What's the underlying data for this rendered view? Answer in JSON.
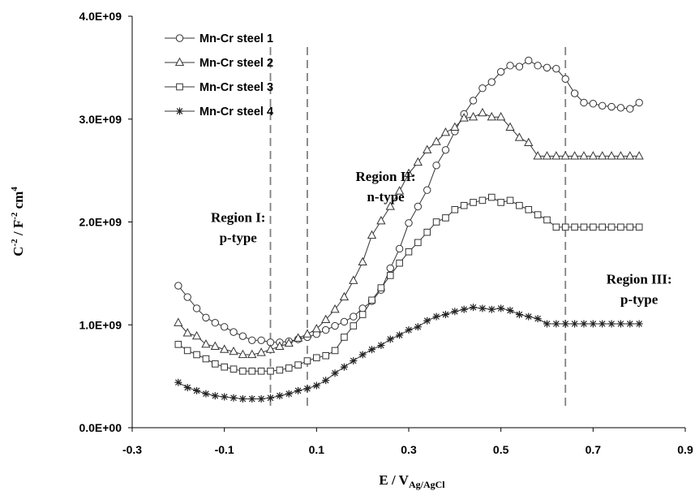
{
  "chart_data": {
    "type": "scatter",
    "xlabel": "E / V",
    "xlabel_sub": "Ag/AgCl",
    "ylabel_parts": [
      "C",
      "-2",
      " / F",
      "-2",
      " cm",
      "4"
    ],
    "xlim": [
      -0.3,
      0.9
    ],
    "ylim": [
      0,
      4000000000
    ],
    "x_ticks": [
      -0.3,
      -0.1,
      0.1,
      0.3,
      0.5,
      0.7,
      0.9
    ],
    "x_tick_labels": [
      "-0.3",
      "-0.1",
      "0.1",
      "0.3",
      "0.5",
      "0.7",
      "0.9"
    ],
    "y_ticks": [
      0,
      1000000000,
      2000000000,
      3000000000,
      4000000000
    ],
    "y_tick_labels": [
      "0.0E+00",
      "1.0E+09",
      "2.0E+09",
      "3.0E+09",
      "4.0E+09"
    ],
    "grid": false,
    "legend_position": "top-left",
    "x": [
      -0.2,
      -0.18,
      -0.16,
      -0.14,
      -0.12,
      -0.1,
      -0.08,
      -0.06,
      -0.04,
      -0.02,
      0.0,
      0.02,
      0.04,
      0.06,
      0.08,
      0.1,
      0.12,
      0.14,
      0.16,
      0.18,
      0.2,
      0.22,
      0.24,
      0.26,
      0.28,
      0.3,
      0.32,
      0.34,
      0.36,
      0.38,
      0.4,
      0.42,
      0.44,
      0.46,
      0.48,
      0.5,
      0.52,
      0.54,
      0.56,
      0.58,
      0.6,
      0.62,
      0.64,
      0.66,
      0.68,
      0.7,
      0.72,
      0.74,
      0.76,
      0.78,
      0.8
    ],
    "series": [
      {
        "name": "Mn-Cr steel 1",
        "marker": "circle",
        "values": [
          1380000000,
          1270000000,
          1160000000,
          1070000000,
          1020000000,
          980000000,
          930000000,
          890000000,
          850000000,
          850000000,
          830000000,
          830000000,
          840000000,
          860000000,
          880000000,
          910000000,
          950000000,
          990000000,
          1030000000,
          1080000000,
          1160000000,
          1230000000,
          1340000000,
          1550000000,
          1740000000,
          1990000000,
          2150000000,
          2310000000,
          2550000000,
          2700000000,
          2880000000,
          3050000000,
          3180000000,
          3300000000,
          3360000000,
          3460000000,
          3520000000,
          3510000000,
          3570000000,
          3520000000,
          3500000000,
          3490000000,
          3390000000,
          3250000000,
          3160000000,
          3150000000,
          3130000000,
          3120000000,
          3110000000,
          3100000000,
          3160000000
        ]
      },
      {
        "name": "Mn-Cr steel 2",
        "marker": "triangle",
        "values": [
          1020000000,
          920000000,
          890000000,
          810000000,
          790000000,
          760000000,
          740000000,
          710000000,
          710000000,
          730000000,
          760000000,
          790000000,
          820000000,
          870000000,
          910000000,
          960000000,
          1050000000,
          1150000000,
          1270000000,
          1430000000,
          1610000000,
          1870000000,
          2010000000,
          2150000000,
          2300000000,
          2470000000,
          2580000000,
          2700000000,
          2780000000,
          2870000000,
          2920000000,
          3010000000,
          3020000000,
          3060000000,
          3020000000,
          3020000000,
          2920000000,
          2820000000,
          2770000000,
          2640000000,
          2640000000,
          2640000000,
          2640000000,
          2640000000,
          2640000000,
          2640000000,
          2640000000,
          2640000000,
          2640000000,
          2640000000,
          2640000000
        ]
      },
      {
        "name": "Mn-Cr steel 3",
        "marker": "square",
        "values": [
          810000000,
          750000000,
          710000000,
          670000000,
          620000000,
          590000000,
          570000000,
          550000000,
          550000000,
          550000000,
          550000000,
          560000000,
          580000000,
          610000000,
          650000000,
          680000000,
          700000000,
          750000000,
          880000000,
          990000000,
          1100000000,
          1240000000,
          1360000000,
          1480000000,
          1600000000,
          1710000000,
          1800000000,
          1900000000,
          2000000000,
          2040000000,
          2120000000,
          2160000000,
          2190000000,
          2210000000,
          2240000000,
          2190000000,
          2210000000,
          2160000000,
          2120000000,
          2070000000,
          2020000000,
          1950000000,
          1950000000,
          1950000000,
          1950000000,
          1950000000,
          1950000000,
          1950000000,
          1950000000,
          1950000000,
          1950000000
        ]
      },
      {
        "name": "Mn-Cr steel 4",
        "marker": "asterisk",
        "values": [
          440000000,
          390000000,
          360000000,
          330000000,
          310000000,
          300000000,
          290000000,
          280000000,
          280000000,
          280000000,
          290000000,
          310000000,
          330000000,
          360000000,
          380000000,
          410000000,
          460000000,
          530000000,
          590000000,
          650000000,
          710000000,
          760000000,
          800000000,
          860000000,
          900000000,
          950000000,
          980000000,
          1040000000,
          1080000000,
          1100000000,
          1130000000,
          1150000000,
          1170000000,
          1160000000,
          1150000000,
          1160000000,
          1140000000,
          1100000000,
          1080000000,
          1060000000,
          1010000000,
          1010000000,
          1010000000,
          1010000000,
          1010000000,
          1010000000,
          1010000000,
          1010000000,
          1010000000,
          1010000000,
          1010000000
        ]
      }
    ],
    "vertical_lines": [
      0.0,
      0.08,
      0.64
    ],
    "annotations": [
      {
        "lines": [
          "Region I:",
          "p-type"
        ],
        "x": -0.07,
        "y": 2000000000
      },
      {
        "lines": [
          "Region II:",
          "n-type"
        ],
        "x": 0.25,
        "y": 2400000000
      },
      {
        "lines": [
          "Region III:",
          "p-type"
        ],
        "x": 0.8,
        "y": 1400000000
      }
    ]
  }
}
